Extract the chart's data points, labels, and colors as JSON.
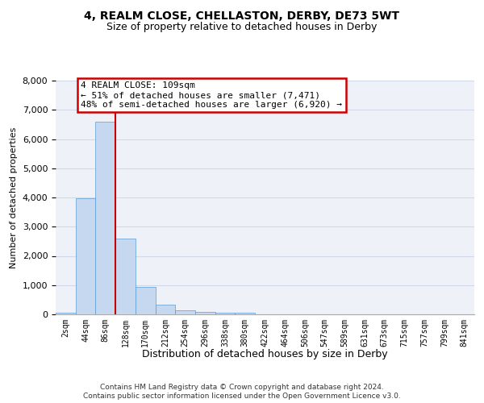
{
  "title1": "4, REALM CLOSE, CHELLASTON, DERBY, DE73 5WT",
  "title2": "Size of property relative to detached houses in Derby",
  "xlabel": "Distribution of detached houses by size in Derby",
  "ylabel": "Number of detached properties",
  "categories": [
    "2sqm",
    "44sqm",
    "86sqm",
    "128sqm",
    "170sqm",
    "212sqm",
    "254sqm",
    "296sqm",
    "338sqm",
    "380sqm",
    "422sqm",
    "464sqm",
    "506sqm",
    "547sqm",
    "589sqm",
    "631sqm",
    "673sqm",
    "715sqm",
    "757sqm",
    "799sqm",
    "841sqm"
  ],
  "values": [
    55,
    3980,
    6600,
    2600,
    950,
    320,
    130,
    80,
    60,
    60,
    0,
    0,
    0,
    0,
    0,
    0,
    0,
    0,
    0,
    0,
    0
  ],
  "bar_color": "#c5d8f0",
  "bar_edge_color": "#5b9bd5",
  "vline_x": 2.5,
  "vline_color": "#cc0000",
  "annotation_text": "4 REALM CLOSE: 109sqm\n← 51% of detached houses are smaller (7,471)\n48% of semi-detached houses are larger (6,920) →",
  "annotation_box_color": "#cc0000",
  "ylim": [
    0,
    8000
  ],
  "yticks": [
    0,
    1000,
    2000,
    3000,
    4000,
    5000,
    6000,
    7000,
    8000
  ],
  "grid_color": "#d0d8e8",
  "background_color": "#eef2f8",
  "footer1": "Contains HM Land Registry data © Crown copyright and database right 2024.",
  "footer2": "Contains public sector information licensed under the Open Government Licence v3.0."
}
